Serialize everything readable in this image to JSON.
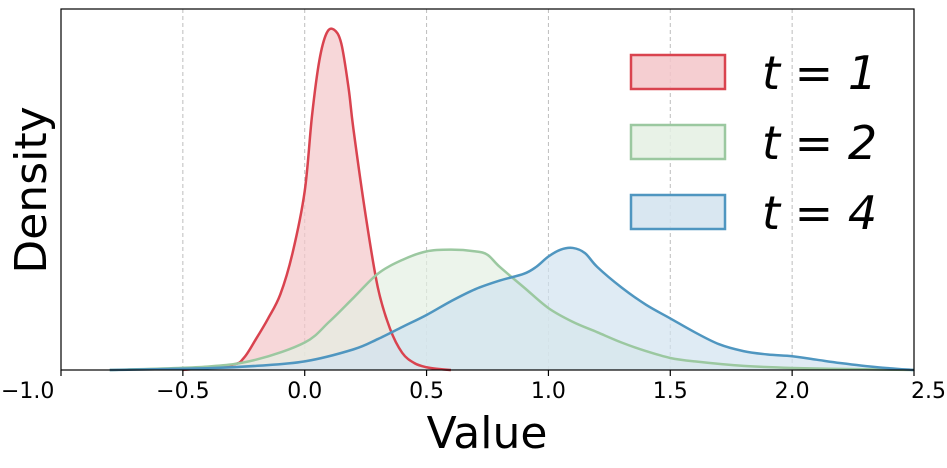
{
  "chart_data": {
    "type": "area",
    "title": "",
    "xlabel": "Value",
    "ylabel": "Density",
    "xlim": [
      -1.0,
      2.5
    ],
    "ylim": [
      0,
      1.05
    ],
    "xticks": [
      "−1.0",
      "−0.5",
      "0.0",
      "0.5",
      "1.0",
      "1.5",
      "2.0",
      "2.5"
    ],
    "xtick_values": [
      -1.0,
      -0.5,
      0.0,
      0.5,
      1.0,
      1.5,
      2.0,
      2.5
    ],
    "yticks_shown": false,
    "grid": "x-dashed",
    "legend": "top-right",
    "series": [
      {
        "name": "t = 1",
        "color": "#d9434f",
        "fill": "#f3c6c9",
        "x": [
          -0.5,
          -0.3,
          -0.25,
          -0.2,
          -0.15,
          -0.1,
          -0.05,
          0.0,
          0.03,
          0.06,
          0.09,
          0.12,
          0.15,
          0.18,
          0.2,
          0.25,
          0.3,
          0.35,
          0.4,
          0.45,
          0.5,
          0.55,
          0.6
        ],
        "y": [
          0.0,
          0.015,
          0.035,
          0.09,
          0.15,
          0.22,
          0.34,
          0.52,
          0.74,
          0.9,
          0.98,
          0.99,
          0.95,
          0.82,
          0.7,
          0.45,
          0.24,
          0.12,
          0.05,
          0.02,
          0.008,
          0.003,
          0.0
        ]
      },
      {
        "name": "t = 2",
        "color": "#9bc8a0",
        "fill": "#e4f0e3",
        "x": [
          -0.8,
          -0.4,
          -0.2,
          0.0,
          0.1,
          0.2,
          0.3,
          0.4,
          0.5,
          0.6,
          0.7,
          0.75,
          0.8,
          0.9,
          1.0,
          1.1,
          1.2,
          1.3,
          1.4,
          1.5,
          1.6,
          1.8,
          2.0,
          2.3,
          2.5
        ],
        "y": [
          0.0,
          0.01,
          0.03,
          0.08,
          0.14,
          0.21,
          0.28,
          0.32,
          0.345,
          0.35,
          0.345,
          0.335,
          0.3,
          0.24,
          0.18,
          0.14,
          0.11,
          0.08,
          0.055,
          0.035,
          0.025,
          0.012,
          0.006,
          0.002,
          0.0
        ]
      },
      {
        "name": "t = 4",
        "color": "#4f96c0",
        "fill": "#d2e3ef",
        "x": [
          -0.8,
          -0.4,
          -0.2,
          0.0,
          0.2,
          0.3,
          0.4,
          0.5,
          0.6,
          0.7,
          0.8,
          0.9,
          0.95,
          1.0,
          1.05,
          1.1,
          1.15,
          1.2,
          1.3,
          1.4,
          1.5,
          1.6,
          1.7,
          1.8,
          1.9,
          2.0,
          2.1,
          2.2,
          2.35,
          2.5
        ],
        "y": [
          0.0,
          0.005,
          0.012,
          0.025,
          0.06,
          0.09,
          0.125,
          0.16,
          0.2,
          0.235,
          0.26,
          0.28,
          0.3,
          0.33,
          0.35,
          0.355,
          0.34,
          0.3,
          0.24,
          0.19,
          0.15,
          0.11,
          0.075,
          0.055,
          0.045,
          0.04,
          0.03,
          0.02,
          0.008,
          0.0
        ]
      }
    ]
  }
}
